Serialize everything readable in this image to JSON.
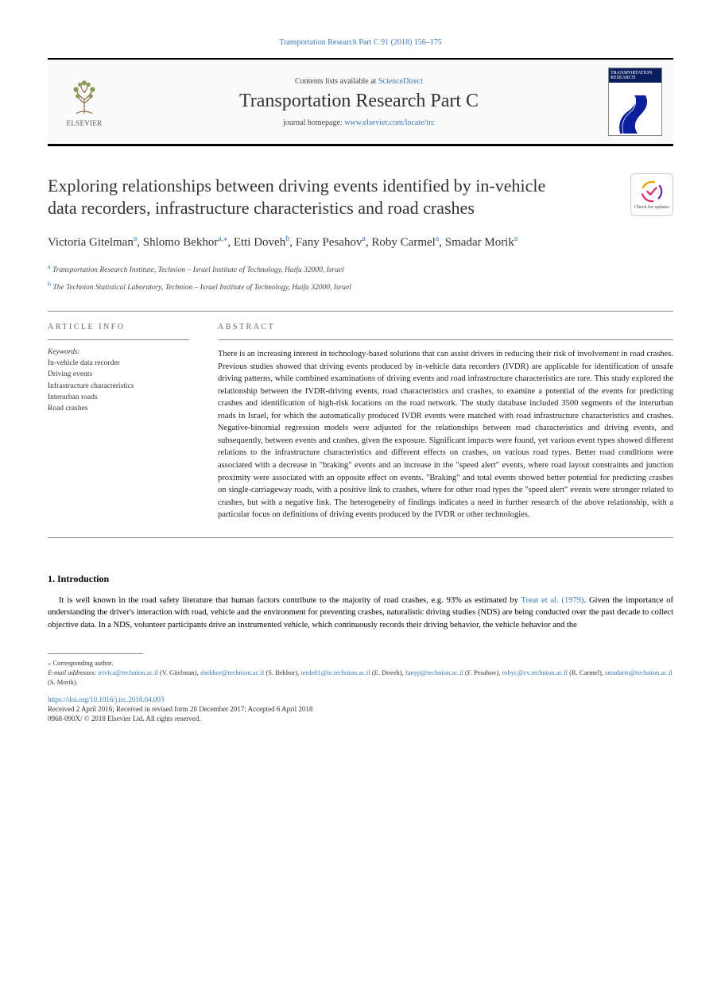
{
  "citation": "Transportation Research Part C 91 (2018) 156–175",
  "header": {
    "contents_prefix": "Contents lists available at ",
    "contents_link": "ScienceDirect",
    "journal_name": "Transportation Research Part C",
    "homepage_prefix": "journal homepage: ",
    "homepage_url": "www.elsevier.com/locate/trc",
    "publisher": "ELSEVIER",
    "cover_text": "TRANSPORTATION RESEARCH"
  },
  "updates_badge": "Check for updates",
  "title": "Exploring relationships between driving events identified by in-vehicle data recorders, infrastructure characteristics and road crashes",
  "authors": [
    {
      "name": "Victoria Gitelman",
      "marks": "a"
    },
    {
      "name": "Shlomo Bekhor",
      "marks": "a,*"
    },
    {
      "name": "Etti Doveh",
      "marks": "b"
    },
    {
      "name": "Fany Pesahov",
      "marks": "a"
    },
    {
      "name": "Roby Carmel",
      "marks": "a"
    },
    {
      "name": "Smadar Morik",
      "marks": "a"
    }
  ],
  "affiliations": [
    {
      "mark": "a",
      "text": "Transportation Research Institute, Technion – Israel Institute of Technology, Haifa 32000, Israel"
    },
    {
      "mark": "b",
      "text": "The Technion Statistical Laboratory, Technion – Israel Institute of Technology, Haifa 32000, Israel"
    }
  ],
  "info": {
    "head": "ARTICLE INFO",
    "keywords_label": "Keywords:",
    "keywords": [
      "In-vehicle data recorder",
      "Driving events",
      "Infrastructure characteristics",
      "Interurban roads",
      "Road crashes"
    ]
  },
  "abstract": {
    "head": "ABSTRACT",
    "text": "There is an increasing interest in technology-based solutions that can assist drivers in reducing their risk of involvement in road crashes. Previous studies showed that driving events produced by in-vehicle data recorders (IVDR) are applicable for identification of unsafe driving patterns, while combined examinations of driving events and road infrastructure characteristics are rare. This study explored the relationship between the IVDR-driving events, road characteristics and crashes, to examine a potential of the events for predicting crashes and identification of high-risk locations on the road network. The study database included 3500 segments of the interurban roads in Israel, for which the automatically produced IVDR events were matched with road infrastructure characteristics and crashes. Negative-binomial regression models were adjusted for the relationships between road characteristics and driving events, and subsequently, between events and crashes, given the exposure. Significant impacts were found, yet various event types showed different relations to the infrastructure characteristics and different effects on crashes, on various road types. Better road conditions were associated with a decrease in \"braking\" events and an increase in the \"speed alert\" events, where road layout constraints and junction proximity were associated with an opposite effect on events. \"Braking\" and total events showed better potential for predicting crashes on single-carriageway roads, with a positive link to crashes, where for other road types the \"speed alert\" events were stronger related to crashes, but with a negative link. The heterogeneity of findings indicates a need in further research of the above relationship, with a particular focus on definitions of driving events produced by the IVDR or other technologies."
  },
  "sections": {
    "intro_head": "1. Introduction",
    "intro_body": "It is well known in the road safety literature that human factors contribute to the majority of road crashes, e.g. 93% as estimated by Treat et al. (1979). Given the importance of understanding the driver's interaction with road, vehicle and the environment for preventing crashes, naturalistic driving studies (NDS) are being conducted over the past decade to collect objective data. In a NDS, volunteer participants drive an instrumented vehicle, which continuously records their driving behavior, the vehicle behavior and the"
  },
  "footnotes": {
    "corr": "Corresponding author.",
    "email_label": "E-mail addresses:",
    "emails": [
      {
        "addr": "trivica@technion.ac.il",
        "who": "(V. Gitelman)"
      },
      {
        "addr": "sbekhor@technion.ac.il",
        "who": "(S. Bekhor)"
      },
      {
        "addr": "ierde01@ie.technion.ac.il",
        "who": "(E. Doveh)"
      },
      {
        "addr": "fanyp@technion.ac.il",
        "who": "(F. Pesahov)"
      },
      {
        "addr": "robyc@cv.technion.ac.il",
        "who": "(R. Carmel)"
      },
      {
        "addr": "smadarm@technion.ac.il",
        "who": "(S. Morik)"
      }
    ],
    "doi": "https://doi.org/10.1016/j.trc.2018.04.003",
    "received": "Received 2 April 2016; Received in revised form 20 December 2017; Accepted 6 April 2018",
    "issn_copy": "0968-090X/ © 2018 Elsevier Ltd. All rights reserved."
  },
  "colors": {
    "link": "#3a7ab5",
    "rule": "#888888",
    "header_bg": "#fafafa",
    "cover_blue": "#0a1e5e"
  },
  "typography": {
    "title_fontsize": 22,
    "journal_fontsize": 24,
    "body_fontsize": 10.5,
    "abstract_fontsize": 10.5,
    "authors_fontsize": 15
  }
}
